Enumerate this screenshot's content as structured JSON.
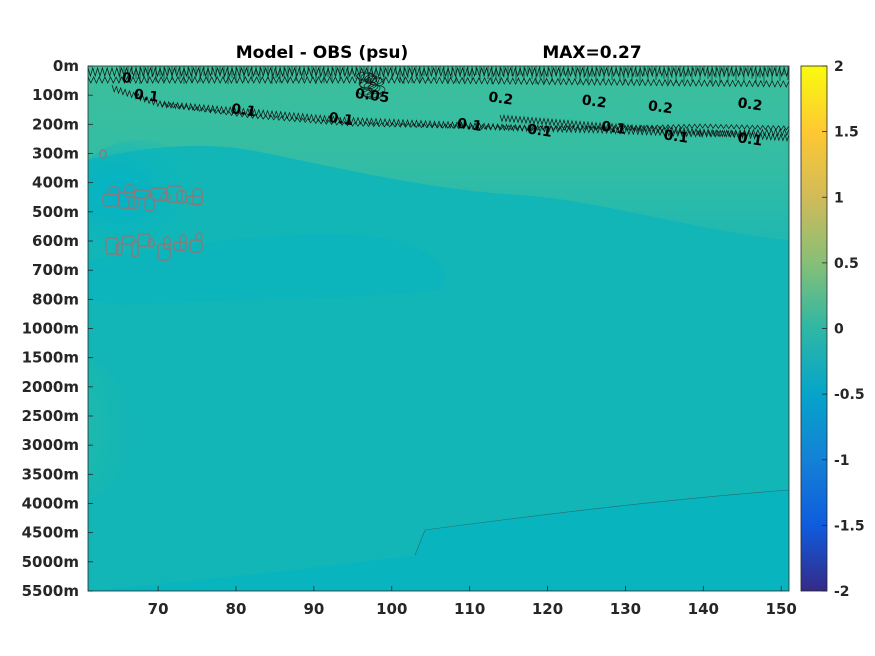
{
  "chart_data": {
    "type": "heatmap",
    "title": "Model - OBS (psu)",
    "subtitle": "MAX=0.27",
    "x": {
      "ticks": [
        70,
        80,
        90,
        100,
        110,
        120,
        130,
        140,
        150
      ],
      "range": [
        61,
        151
      ]
    },
    "y": {
      "ticks": [
        "0m",
        "100m",
        "200m",
        "300m",
        "400m",
        "500m",
        "600m",
        "700m",
        "800m",
        "1000m",
        "1500m",
        "2000m",
        "2500m",
        "3000m",
        "3500m",
        "4000m",
        "4500m",
        "5000m",
        "5500m"
      ],
      "reversed": true
    },
    "colorbar": {
      "ticks": [
        "2",
        "1.5",
        "1",
        "0.5",
        "0",
        "-0.5",
        "-1",
        "-1.5",
        "-2"
      ],
      "range": [
        -2,
        2
      ],
      "colormap": "parula",
      "colors": [
        "#352a87",
        "#0f5cdd",
        "#1481d6",
        "#06a4ca",
        "#2eb7a4",
        "#87bf77",
        "#d1bb59",
        "#fec832",
        "#f9fb0e"
      ]
    },
    "contour_labels": [
      {
        "text": "0.1",
        "x": 68.5,
        "depth": "100m"
      },
      {
        "text": "0.1",
        "x": 81,
        "depth": "150m"
      },
      {
        "text": "0.1",
        "x": 93.5,
        "depth": "180m"
      },
      {
        "text": "0.1",
        "x": 110,
        "depth": "200m"
      },
      {
        "text": "0.1",
        "x": 119,
        "depth": "220m"
      },
      {
        "text": "0.1",
        "x": 128.5,
        "depth": "210m"
      },
      {
        "text": "0.1",
        "x": 136.5,
        "depth": "240m"
      },
      {
        "text": "0.1",
        "x": 146,
        "depth": "250m"
      },
      {
        "text": "0.2",
        "x": 114,
        "depth": "110m"
      },
      {
        "text": "0.2",
        "x": 126,
        "depth": "120m"
      },
      {
        "text": "0.2",
        "x": 134.5,
        "depth": "140m"
      },
      {
        "text": "0.2",
        "x": 146,
        "depth": "130m"
      },
      {
        "text": "0.05",
        "x": 97.5,
        "depth": "100m"
      },
      {
        "text": "0",
        "x": 66,
        "depth": "40m"
      }
    ],
    "field_description_values": {
      "background": 0.05,
      "upper_layer_max": 0.27,
      "negative_patch_min": -0.3
    }
  }
}
